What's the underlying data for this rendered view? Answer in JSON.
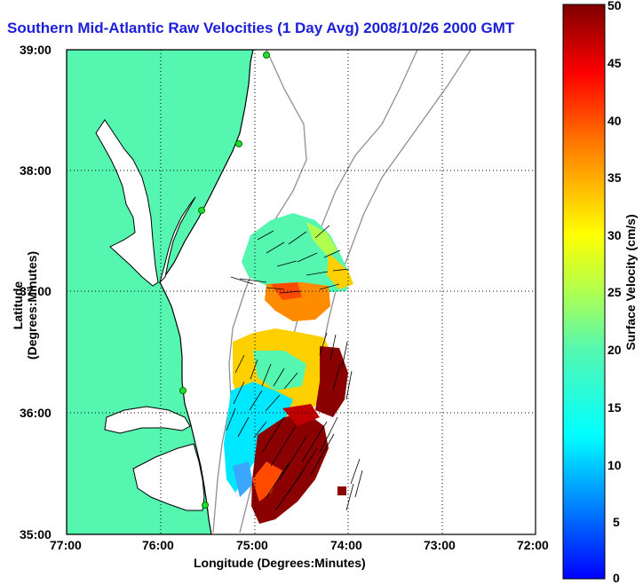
{
  "title": "Southern Mid-Atlantic Raw Velocities (1 Day Avg) 2008/10/26 2000 GMT",
  "xlabel": "Longitude (Degrees:Minutes)",
  "ylabel": "Latitude (Degrees:Minutes)",
  "colorbar_label": "Surface Velocity (cm/s)",
  "x_ticks": [
    "77:00",
    "76:00",
    "75:00",
    "74:00",
    "73:00",
    "72:00"
  ],
  "y_ticks": [
    "39:00",
    "38:00",
    "37:00",
    "36:00",
    "35:00"
  ],
  "colorbar_ticks": [
    "50",
    "45",
    "40",
    "35",
    "30",
    "25",
    "20",
    "15",
    "10",
    "5",
    "0"
  ],
  "colors": {
    "land": "#55f7b0",
    "coast": "#000000",
    "bathymetry": "#909090",
    "title": "#1d20d8"
  },
  "chart_data": {
    "type": "heatmap",
    "title": "Southern Mid-Atlantic Raw Velocities (1 Day Avg) 2008/10/26 2000 GMT",
    "xlabel": "Longitude (Degrees:Minutes)",
    "ylabel": "Latitude (Degrees:Minutes)",
    "xlim": [
      -77.0,
      -72.0
    ],
    "ylim": [
      35.0,
      39.0
    ],
    "grid": true,
    "colorbar": {
      "label": "Surface Velocity (cm/s)",
      "range": [
        0,
        50
      ],
      "colormap": "jet"
    }
  }
}
